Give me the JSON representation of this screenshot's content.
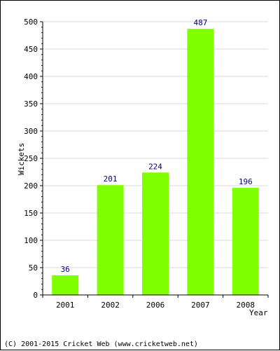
{
  "chart_data": {
    "type": "bar",
    "categories": [
      "2001",
      "2002",
      "2006",
      "2007",
      "2008"
    ],
    "values": [
      36,
      201,
      224,
      487,
      196
    ],
    "data_labels": [
      "36",
      "201",
      "224",
      "487",
      "196"
    ],
    "title": "",
    "xlabel": "Year",
    "ylabel": "Wickets",
    "ylim": [
      0,
      500
    ],
    "yticks": [
      "0",
      "50",
      "100",
      "150",
      "200",
      "250",
      "300",
      "350",
      "400",
      "450",
      "500"
    ],
    "grid": true,
    "bar_color": "#7fff00",
    "label_color": "#000080"
  },
  "footer": {
    "copyright": "(C) 2001-2015 Cricket Web (www.cricketweb.net)"
  }
}
